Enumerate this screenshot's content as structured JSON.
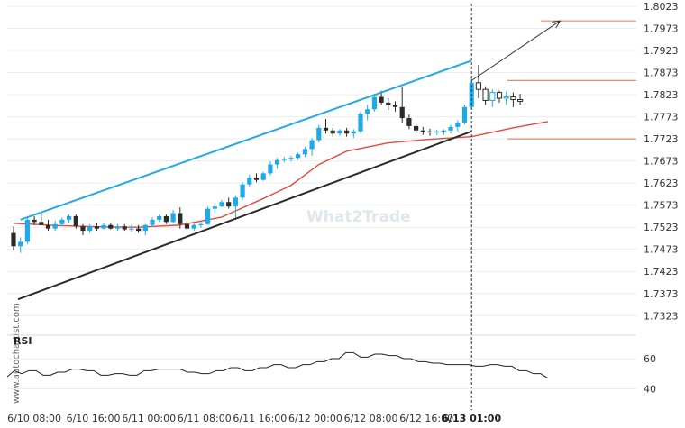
{
  "chart_data": {
    "type": "candlestick",
    "y_ticks": [
      "1.8023",
      "1.7973",
      "1.7923",
      "1.7873",
      "1.7823",
      "1.7773",
      "1.7723",
      "1.7673",
      "1.7623",
      "1.7573",
      "1.7523",
      "1.7473",
      "1.7423",
      "1.7373",
      "1.7323"
    ],
    "ylim": [
      1.7293,
      1.8025
    ],
    "x_labels": [
      "6/10 08:00",
      "6/10 16:00",
      "6/11 00:00",
      "6/11 08:00",
      "6/11 16:00",
      "6/12 00:00",
      "6/12 08:00",
      "6/12 16:00",
      "6/13 01:00"
    ],
    "x_label_bold": "6/13 01:00",
    "candles": [
      [
        1.751,
        1.7525,
        1.747,
        1.748
      ],
      [
        1.748,
        1.75,
        1.7465,
        1.749
      ],
      [
        1.749,
        1.7545,
        1.7485,
        1.754
      ],
      [
        1.754,
        1.7548,
        1.7528,
        1.7535
      ],
      [
        1.7535,
        1.7558,
        1.753,
        1.7528
      ],
      [
        1.7528,
        1.754,
        1.7515,
        1.752
      ],
      [
        1.752,
        1.7538,
        1.7515,
        1.753
      ],
      [
        1.753,
        1.7545,
        1.7525,
        1.754
      ],
      [
        1.754,
        1.7552,
        1.7532,
        1.7548
      ],
      [
        1.7548,
        1.7552,
        1.752,
        1.7525
      ],
      [
        1.7525,
        1.753,
        1.7505,
        1.7515
      ],
      [
        1.7515,
        1.753,
        1.751,
        1.7525
      ],
      [
        1.7525,
        1.7532,
        1.7515,
        1.752
      ],
      [
        1.752,
        1.7532,
        1.7518,
        1.7528
      ],
      [
        1.7528,
        1.7532,
        1.7518,
        1.752
      ],
      [
        1.752,
        1.753,
        1.7515,
        1.7525
      ],
      [
        1.7525,
        1.753,
        1.7515,
        1.7518
      ],
      [
        1.7518,
        1.7528,
        1.7512,
        1.752
      ],
      [
        1.752,
        1.7528,
        1.751,
        1.7515
      ],
      [
        1.7515,
        1.753,
        1.7505,
        1.7528
      ],
      [
        1.7528,
        1.7545,
        1.7525,
        1.754
      ],
      [
        1.754,
        1.7552,
        1.7535,
        1.7548
      ],
      [
        1.7548,
        1.7552,
        1.753,
        1.7535
      ],
      [
        1.7535,
        1.7562,
        1.7532,
        1.7555
      ],
      [
        1.7555,
        1.7568,
        1.752,
        1.753
      ],
      [
        1.753,
        1.7538,
        1.7515,
        1.752
      ],
      [
        1.752,
        1.7532,
        1.7515,
        1.7528
      ],
      [
        1.7528,
        1.7535,
        1.7522,
        1.753
      ],
      [
        1.753,
        1.757,
        1.7528,
        1.7565
      ],
      [
        1.7565,
        1.7578,
        1.7555,
        1.757
      ],
      [
        1.757,
        1.7585,
        1.7568,
        1.758
      ],
      [
        1.758,
        1.759,
        1.7565,
        1.757
      ],
      [
        1.757,
        1.7595,
        1.754,
        1.759
      ],
      [
        1.759,
        1.7625,
        1.7585,
        1.762
      ],
      [
        1.762,
        1.7642,
        1.7615,
        1.7635
      ],
      [
        1.7635,
        1.7645,
        1.7625,
        1.763
      ],
      [
        1.763,
        1.7648,
        1.7628,
        1.7645
      ],
      [
        1.7645,
        1.7672,
        1.764,
        1.7665
      ],
      [
        1.7665,
        1.768,
        1.7655,
        1.7675
      ],
      [
        1.7675,
        1.7682,
        1.767,
        1.7678
      ],
      [
        1.7678,
        1.7685,
        1.7672,
        1.768
      ],
      [
        1.768,
        1.7692,
        1.7675,
        1.7688
      ],
      [
        1.7688,
        1.7705,
        1.7682,
        1.77
      ],
      [
        1.77,
        1.7725,
        1.7685,
        1.772
      ],
      [
        1.772,
        1.7755,
        1.7715,
        1.7748
      ],
      [
        1.7748,
        1.7768,
        1.7735,
        1.7742
      ],
      [
        1.7742,
        1.7748,
        1.7728,
        1.7735
      ],
      [
        1.7735,
        1.7745,
        1.773,
        1.7742
      ],
      [
        1.7742,
        1.7748,
        1.7728,
        1.7735
      ],
      [
        1.7735,
        1.7745,
        1.7725,
        1.774
      ],
      [
        1.774,
        1.7785,
        1.7735,
        1.778
      ],
      [
        1.778,
        1.78,
        1.7765,
        1.779
      ],
      [
        1.779,
        1.7825,
        1.7785,
        1.7818
      ],
      [
        1.7818,
        1.7832,
        1.78,
        1.7805
      ],
      [
        1.7805,
        1.7815,
        1.7788,
        1.78
      ],
      [
        1.78,
        1.7808,
        1.7785,
        1.7795
      ],
      [
        1.7795,
        1.784,
        1.776,
        1.777
      ],
      [
        1.777,
        1.7778,
        1.7745,
        1.7752
      ],
      [
        1.7752,
        1.776,
        1.7735,
        1.7742
      ],
      [
        1.7742,
        1.775,
        1.7732,
        1.774
      ],
      [
        1.774,
        1.7746,
        1.773,
        1.7738
      ],
      [
        1.7738,
        1.7744,
        1.7732,
        1.774
      ],
      [
        1.774,
        1.7745,
        1.7732,
        1.7742
      ],
      [
        1.7742,
        1.7755,
        1.7735,
        1.775
      ],
      [
        1.775,
        1.7765,
        1.774,
        1.776
      ],
      [
        1.776,
        1.78,
        1.7755,
        1.7795
      ],
      [
        1.7795,
        1.786,
        1.779,
        1.785
      ],
      [
        1.785,
        1.789,
        1.7815,
        1.7835
      ],
      [
        1.7835,
        1.7842,
        1.78,
        1.781
      ],
      [
        1.781,
        1.7835,
        1.7795,
        1.7828
      ],
      [
        1.7828,
        1.7832,
        1.7805,
        1.7815
      ],
      [
        1.7815,
        1.783,
        1.78,
        1.7818
      ],
      [
        1.7818,
        1.7828,
        1.7795,
        1.7812
      ],
      [
        1.7812,
        1.7825,
        1.78,
        1.7808
      ]
    ],
    "moving_average": [
      [
        0,
        1.7532
      ],
      [
        6,
        1.7527
      ],
      [
        12,
        1.7524
      ],
      [
        18,
        1.7523
      ],
      [
        24,
        1.7528
      ],
      [
        30,
        1.7546
      ],
      [
        36,
        1.7588
      ],
      [
        40,
        1.7618
      ],
      [
        44,
        1.7665
      ],
      [
        48,
        1.7695
      ],
      [
        54,
        1.7714
      ],
      [
        60,
        1.7722
      ],
      [
        66,
        1.7728
      ],
      [
        72,
        1.7748
      ],
      [
        77,
        1.7762
      ]
    ],
    "channel": {
      "upper": [
        [
          1,
          1.754
        ],
        [
          66,
          1.79
        ]
      ],
      "lower": [
        [
          0,
          1.736
        ],
        [
          66,
          1.774
        ]
      ]
    },
    "levels": [
      1.799,
      1.7855,
      1.7723
    ],
    "projection": [
      [
        66,
        1.7855
      ],
      [
        79,
        1.799
      ]
    ],
    "vline_index": 66,
    "rsi": {
      "title": "RSI",
      "ticks": [
        "60",
        "40"
      ],
      "ylim": [
        30,
        72
      ],
      "values": [
        48,
        52,
        50,
        52,
        52,
        49,
        49,
        51,
        51,
        53,
        53,
        52,
        52,
        49,
        49,
        50,
        50,
        49,
        49,
        52,
        52,
        53,
        53,
        53,
        53,
        51,
        51,
        50,
        50,
        52,
        52,
        54,
        54,
        52,
        52,
        54,
        54,
        56,
        56,
        54,
        54,
        56,
        56,
        58,
        58,
        60,
        60,
        64,
        64,
        61,
        61,
        63,
        63,
        62,
        62,
        60,
        60,
        58,
        58,
        57,
        57,
        56,
        56,
        56,
        56,
        55,
        55,
        56,
        56,
        55,
        55,
        52,
        52,
        50,
        50,
        47
      ]
    }
  },
  "watermarks": {
    "left": "www.autochartist.com",
    "center": "What2Trade"
  },
  "colors": {
    "bull": "#1eaaea",
    "bear": "#2b2b2b",
    "upper_channel": "#27a9e0",
    "lower_channel": "#2b2b2b",
    "level": "#f08a64",
    "moving_average": "#e64a3c",
    "vline": "#333333",
    "grid": "#ececec"
  }
}
